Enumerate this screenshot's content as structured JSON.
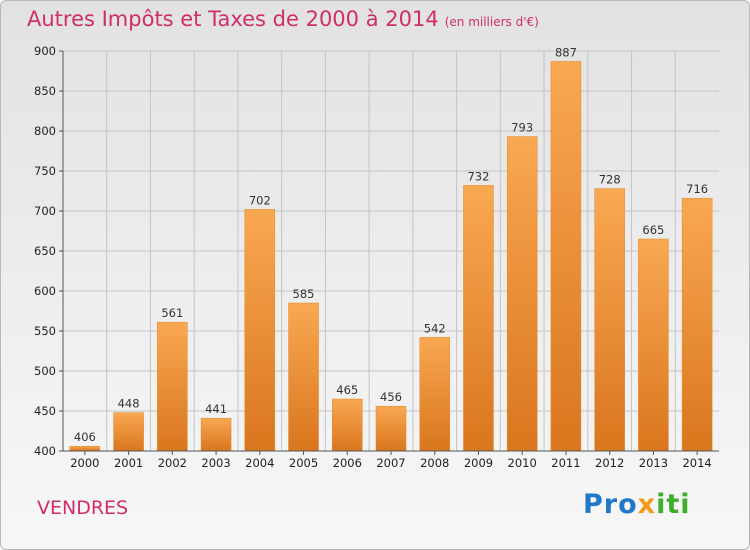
{
  "header": {
    "title": "Autres Impôts et Taxes de 2000 à 2014",
    "unit": "(en milliers d'€)"
  },
  "footer": {
    "commune": "VENDRES",
    "logo": [
      "Pro",
      "x",
      "iti"
    ]
  },
  "colors": {
    "title": "#d02d6a",
    "bar_light": "#f9a852",
    "bar_dark": "#d9761e",
    "grid": "#c4c4c4"
  },
  "chart_data": {
    "type": "bar",
    "title": "Autres Impôts et Taxes de 2000 à 2014",
    "subtitle": "(en milliers d'€)",
    "xlabel": "",
    "ylabel": "",
    "categories": [
      "2000",
      "2001",
      "2002",
      "2003",
      "2004",
      "2005",
      "2006",
      "2007",
      "2008",
      "2009",
      "2010",
      "2011",
      "2012",
      "2013",
      "2014"
    ],
    "values": [
      406,
      448,
      561,
      441,
      702,
      585,
      465,
      456,
      542,
      732,
      793,
      887,
      728,
      665,
      716
    ],
    "ylim": [
      400,
      900
    ],
    "yticks": [
      400,
      450,
      500,
      550,
      600,
      650,
      700,
      750,
      800,
      850,
      900
    ],
    "grid": true,
    "legend": "none"
  }
}
